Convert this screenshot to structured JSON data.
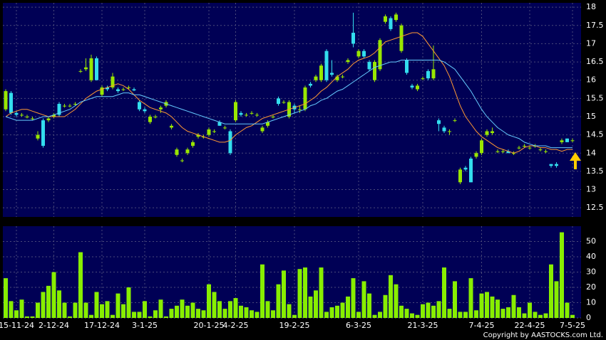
{
  "chart_data": [
    {
      "type": "candlestick",
      "categories": [
        null,
        null,
        "15-11-24",
        null,
        null,
        null,
        null,
        null,
        null,
        "2-12-24",
        null,
        null,
        null,
        null,
        null,
        null,
        null,
        null,
        "17-12-24",
        null,
        null,
        null,
        null,
        null,
        null,
        null,
        "3-1-25",
        null,
        null,
        null,
        null,
        null,
        null,
        null,
        null,
        null,
        null,
        null,
        "20-1-25",
        null,
        null,
        null,
        null,
        "4-2-25",
        null,
        null,
        null,
        null,
        null,
        null,
        null,
        null,
        null,
        null,
        "19-2-25",
        null,
        null,
        null,
        null,
        null,
        null,
        null,
        null,
        null,
        null,
        null,
        "6-3-25",
        null,
        null,
        null,
        null,
        null,
        null,
        null,
        null,
        null,
        null,
        null,
        "21-3-25",
        null,
        null,
        null,
        null,
        null,
        null,
        null,
        null,
        null,
        null,
        "7-4-25",
        null,
        null,
        null,
        null,
        null,
        null,
        null,
        null,
        "22-4-25",
        null,
        null,
        null,
        null,
        null,
        null,
        null,
        "7-5-25"
      ],
      "candles": [
        [
          15.2,
          15.75,
          15.15,
          15.7
        ],
        [
          15.65,
          15.7,
          15.05,
          15.1
        ],
        [
          15.1,
          15.15,
          15.0,
          15.05
        ],
        [
          15.05,
          15.1,
          15.0,
          15.05
        ],
        [
          15.0,
          15.05,
          14.95,
          15.0
        ],
        [
          14.95,
          15.0,
          14.9,
          14.95
        ],
        [
          14.4,
          14.6,
          14.35,
          14.5
        ],
        [
          14.9,
          14.95,
          14.15,
          14.2
        ],
        [
          14.9,
          15.0,
          14.85,
          14.95
        ],
        [
          15.0,
          15.1,
          14.95,
          15.05
        ],
        [
          15.35,
          15.4,
          15.0,
          15.05
        ],
        [
          15.3,
          15.35,
          15.25,
          15.3
        ],
        [
          15.3,
          15.35,
          15.25,
          15.3
        ],
        [
          15.35,
          15.4,
          15.3,
          15.35
        ],
        [
          16.25,
          16.3,
          16.2,
          16.25
        ],
        [
          16.3,
          16.6,
          16.25,
          16.35
        ],
        [
          16.0,
          16.7,
          15.95,
          16.6
        ],
        [
          16.6,
          16.65,
          16.0,
          16.0
        ],
        [
          15.6,
          15.85,
          15.55,
          15.8
        ],
        [
          15.8,
          15.85,
          15.7,
          15.75
        ],
        [
          15.8,
          16.2,
          15.75,
          16.1
        ],
        [
          15.75,
          15.8,
          15.65,
          15.7
        ],
        [
          15.75,
          15.8,
          15.7,
          15.75
        ],
        [
          15.8,
          15.85,
          15.75,
          15.8
        ],
        [
          15.75,
          15.8,
          15.7,
          15.72
        ],
        [
          15.4,
          15.45,
          15.15,
          15.2
        ],
        [
          15.2,
          15.25,
          15.1,
          15.15
        ],
        [
          14.85,
          15.05,
          14.8,
          15.0
        ],
        [
          15.0,
          15.05,
          14.95,
          15.0
        ],
        [
          15.2,
          15.3,
          15.1,
          15.25
        ],
        [
          15.3,
          15.45,
          15.25,
          15.4
        ],
        [
          14.7,
          14.8,
          14.65,
          14.75
        ],
        [
          13.95,
          14.15,
          13.9,
          14.1
        ],
        [
          13.8,
          13.85,
          13.75,
          13.8
        ],
        [
          14.0,
          14.15,
          13.95,
          14.1
        ],
        [
          14.2,
          14.35,
          14.15,
          14.3
        ],
        [
          14.45,
          14.55,
          14.4,
          14.5
        ],
        [
          14.45,
          14.5,
          14.4,
          14.45
        ],
        [
          14.5,
          14.7,
          14.45,
          14.65
        ],
        [
          14.6,
          14.65,
          14.55,
          14.6
        ],
        [
          14.85,
          14.9,
          14.75,
          14.75
        ],
        [
          14.7,
          14.75,
          14.65,
          14.7
        ],
        [
          14.6,
          14.65,
          13.95,
          14.0
        ],
        [
          14.9,
          15.45,
          14.85,
          15.4
        ],
        [
          15.1,
          15.15,
          15.0,
          15.05
        ],
        [
          15.05,
          15.1,
          15.0,
          15.05
        ],
        [
          15.1,
          15.15,
          15.05,
          15.1
        ],
        [
          15.05,
          15.1,
          15.0,
          15.05
        ],
        [
          14.6,
          14.75,
          14.55,
          14.7
        ],
        [
          14.75,
          14.9,
          14.7,
          14.85
        ],
        [
          15.0,
          15.05,
          14.95,
          15.0
        ],
        [
          15.5,
          15.55,
          15.3,
          15.35
        ],
        [
          15.4,
          15.45,
          15.35,
          15.4
        ],
        [
          15.0,
          15.45,
          14.95,
          15.4
        ],
        [
          15.3,
          15.35,
          15.1,
          15.2
        ],
        [
          15.2,
          15.3,
          15.1,
          15.2
        ],
        [
          15.2,
          15.85,
          15.15,
          15.8
        ],
        [
          15.9,
          15.95,
          15.8,
          15.85
        ],
        [
          16.0,
          16.15,
          15.95,
          16.1
        ],
        [
          16.0,
          16.45,
          15.95,
          16.4
        ],
        [
          16.8,
          16.85,
          15.95,
          16.0
        ],
        [
          16.2,
          16.55,
          16.1,
          16.15
        ],
        [
          16.0,
          16.15,
          15.95,
          16.1
        ],
        [
          16.1,
          16.15,
          16.05,
          16.1
        ],
        [
          16.5,
          16.6,
          16.45,
          16.55
        ],
        [
          17.3,
          17.85,
          16.9,
          17.0
        ],
        [
          16.65,
          16.85,
          16.6,
          16.8
        ],
        [
          16.8,
          16.85,
          16.6,
          16.65
        ],
        [
          16.5,
          16.55,
          16.25,
          16.3
        ],
        [
          16.0,
          16.55,
          15.95,
          16.5
        ],
        [
          16.3,
          17.15,
          16.25,
          17.1
        ],
        [
          17.6,
          17.8,
          17.55,
          17.75
        ],
        [
          17.7,
          17.75,
          17.35,
          17.4
        ],
        [
          17.65,
          17.85,
          17.6,
          17.8
        ],
        [
          16.8,
          17.55,
          16.75,
          17.5
        ],
        [
          16.55,
          16.6,
          16.15,
          16.2
        ],
        [
          15.85,
          15.9,
          15.75,
          15.8
        ],
        [
          15.75,
          15.9,
          15.7,
          15.85
        ],
        [
          16.05,
          16.1,
          16.0,
          16.05
        ],
        [
          16.25,
          16.3,
          16.0,
          16.05
        ],
        [
          16.05,
          16.95,
          16.0,
          16.3
        ],
        [
          14.9,
          14.95,
          14.6,
          14.8
        ],
        [
          14.7,
          14.75,
          14.55,
          14.6
        ],
        [
          14.6,
          14.65,
          14.5,
          14.6
        ],
        [
          14.9,
          14.95,
          14.85,
          14.9
        ],
        [
          13.2,
          13.6,
          13.15,
          13.55
        ],
        [
          13.6,
          13.65,
          13.5,
          13.55
        ],
        [
          13.85,
          13.9,
          13.2,
          13.2
        ],
        [
          13.9,
          14.05,
          13.85,
          14.0
        ],
        [
          14.0,
          14.4,
          13.95,
          14.35
        ],
        [
          14.5,
          14.65,
          14.45,
          14.6
        ],
        [
          14.55,
          14.7,
          14.5,
          14.6
        ],
        [
          14.05,
          14.1,
          14.0,
          14.05
        ],
        [
          14.05,
          14.1,
          14.0,
          14.05
        ],
        [
          14.05,
          14.1,
          14.0,
          14.0
        ],
        [
          14.0,
          14.05,
          13.95,
          14.0
        ],
        [
          14.15,
          14.2,
          14.1,
          14.15
        ],
        [
          14.2,
          14.25,
          14.15,
          14.2
        ],
        [
          14.15,
          14.2,
          14.1,
          14.15
        ],
        [
          14.2,
          14.25,
          14.15,
          14.2
        ],
        [
          14.1,
          14.15,
          14.05,
          14.1
        ],
        [
          14.05,
          14.1,
          14.0,
          14.05
        ],
        [
          13.7,
          13.7,
          13.6,
          13.65
        ],
        [
          13.7,
          13.75,
          13.6,
          13.65
        ],
        [
          14.3,
          14.4,
          14.25,
          14.35
        ],
        [
          14.4,
          14.4,
          14.3,
          14.3
        ],
        [
          14.35,
          14.4,
          14.3,
          14.35
        ]
      ],
      "up_color": "#99e600",
      "down_color": "#33ddee",
      "series": [
        {
          "color": "#ff9933",
          "values": [
            15.0,
            15.1,
            15.15,
            15.2,
            15.2,
            15.15,
            15.1,
            15.05,
            15.0,
            15.0,
            15.0,
            15.0,
            15.1,
            15.2,
            15.35,
            15.5,
            15.6,
            15.7,
            15.75,
            15.8,
            15.85,
            15.9,
            15.85,
            15.75,
            15.6,
            15.45,
            15.35,
            15.25,
            15.2,
            15.15,
            15.1,
            15.0,
            14.85,
            14.7,
            14.6,
            14.55,
            14.5,
            14.45,
            14.4,
            14.35,
            14.3,
            14.3,
            14.35,
            14.5,
            14.6,
            14.7,
            14.75,
            14.85,
            14.95,
            15.0,
            15.05,
            15.1,
            15.15,
            15.2,
            15.25,
            15.3,
            15.35,
            15.45,
            15.55,
            15.7,
            15.8,
            15.95,
            16.1,
            16.2,
            16.3,
            16.45,
            16.55,
            16.6,
            16.65,
            16.75,
            16.9,
            17.05,
            17.1,
            17.15,
            17.2,
            17.25,
            17.3,
            17.3,
            17.2,
            17.0,
            16.8,
            16.6,
            16.4,
            16.1,
            15.7,
            15.3,
            15.0,
            14.8,
            14.6,
            14.45,
            14.35,
            14.25,
            14.15,
            14.1,
            14.05,
            14.0,
            14.05,
            14.15,
            14.2,
            14.2,
            14.15,
            14.15,
            14.1,
            14.1,
            14.05,
            14.1,
            14.1
          ]
        },
        {
          "color": "#66ccff",
          "values": [
            15.0,
            14.95,
            14.9,
            14.9,
            14.9,
            14.9,
            14.95,
            15.0,
            15.0,
            15.05,
            15.1,
            15.15,
            15.2,
            15.3,
            15.4,
            15.45,
            15.5,
            15.55,
            15.55,
            15.55,
            15.55,
            15.6,
            15.65,
            15.65,
            15.6,
            15.6,
            15.55,
            15.5,
            15.45,
            15.4,
            15.35,
            15.3,
            15.25,
            15.2,
            15.15,
            15.1,
            15.05,
            15.0,
            14.95,
            14.9,
            14.85,
            14.8,
            14.8,
            14.8,
            14.8,
            14.8,
            14.8,
            14.8,
            14.8,
            14.85,
            14.9,
            14.95,
            15.0,
            15.05,
            15.1,
            15.15,
            15.2,
            15.3,
            15.35,
            15.45,
            15.5,
            15.6,
            15.7,
            15.75,
            15.85,
            15.95,
            16.05,
            16.15,
            16.25,
            16.35,
            16.4,
            16.45,
            16.5,
            16.5,
            16.55,
            16.55,
            16.55,
            16.55,
            16.55,
            16.55,
            16.55,
            16.55,
            16.5,
            16.4,
            16.3,
            16.1,
            15.9,
            15.7,
            15.45,
            15.2,
            15.0,
            14.85,
            14.7,
            14.6,
            14.5,
            14.45,
            14.4,
            14.3,
            14.25,
            14.2,
            14.2,
            14.2,
            14.15,
            14.15,
            14.15,
            14.15,
            14.15
          ]
        }
      ],
      "ylim": [
        12.25,
        18.12
      ],
      "yticks": [
        12.5,
        13,
        13.5,
        14,
        14.5,
        15,
        15.5,
        16,
        16.5,
        17,
        17.5,
        18
      ],
      "grid": true
    },
    {
      "type": "bar",
      "values": [
        26,
        11,
        5,
        12,
        1,
        1,
        10,
        17,
        21,
        30,
        18,
        10,
        1,
        10,
        43,
        10,
        2,
        17,
        9,
        11,
        2,
        16,
        9,
        20,
        4,
        4,
        11,
        1,
        5,
        12,
        1,
        6,
        8,
        12,
        8,
        10,
        6,
        5,
        22,
        17,
        11,
        6,
        11,
        13,
        8,
        7,
        5,
        4,
        35,
        11,
        5,
        22,
        31,
        9,
        2,
        32,
        33,
        14,
        18,
        33,
        4,
        7,
        8,
        10,
        14,
        26,
        4,
        24,
        16,
        2,
        4,
        15,
        28,
        22,
        8,
        6,
        3,
        2,
        9,
        10,
        8,
        11,
        33,
        6,
        24,
        4,
        4,
        26,
        5,
        16,
        17,
        14,
        12,
        6,
        7,
        15,
        7,
        3,
        10,
        4,
        2,
        3,
        35,
        24,
        56,
        10,
        2
      ],
      "color": "#88ee00",
      "ylim": [
        0,
        60
      ],
      "yticks": [
        0,
        10,
        20,
        30,
        40,
        50
      ],
      "grid": true
    }
  ],
  "footer": "Copyright by AASTOCKS.com Ltd."
}
